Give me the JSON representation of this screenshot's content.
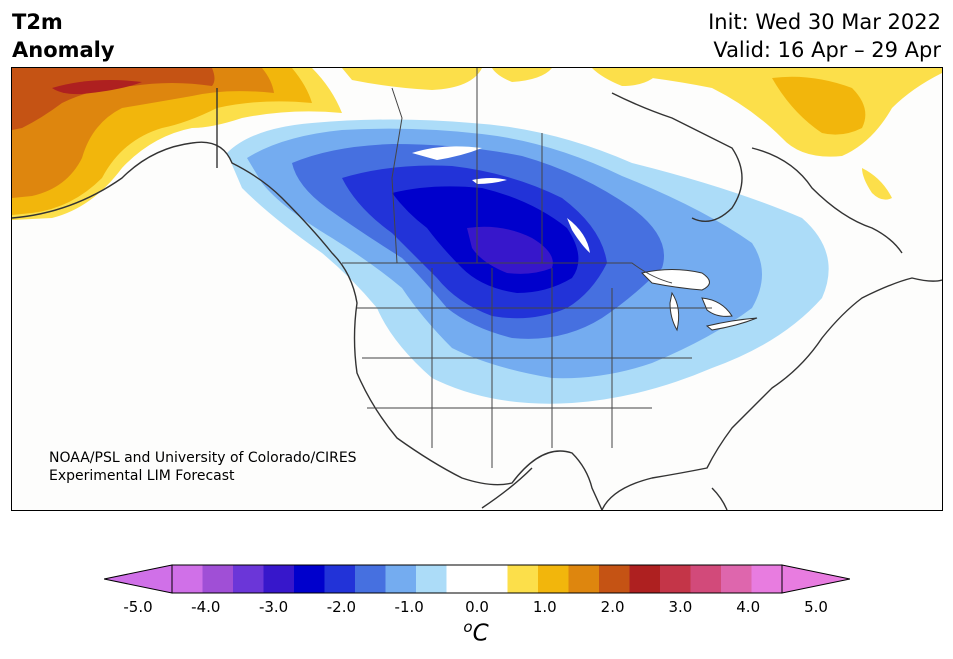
{
  "header": {
    "title_line1": "T2m",
    "title_line2": "Anomaly",
    "init": "Init: Wed 30 Mar 2022",
    "valid": "Valid: 16 Apr – 29 Apr"
  },
  "credit": {
    "line1": "NOAA/PSL and University of Colorado/CIRES",
    "line2": "Experimental LIM Forecast"
  },
  "colorbar": {
    "unit_base": "C",
    "unit_sup": "o",
    "ticks": [
      "-5.0",
      "-4.0",
      "-3.0",
      "-2.0",
      "-1.0",
      "0.0",
      "1.0",
      "2.0",
      "3.0",
      "4.0",
      "5.0"
    ],
    "colors": [
      "#d070e8",
      "#a04fd6",
      "#6b36d8",
      "#3717cb",
      "#0000cc",
      "#2233d8",
      "#4670e0",
      "#74acf0",
      "#acdcf8",
      "#ffffff",
      "#ffffff",
      "#fcdf4a",
      "#f2b60c",
      "#de860e",
      "#c55314",
      "#ae2020",
      "#c43548",
      "#d24a7a",
      "#de66ad",
      "#e87ce0"
    ],
    "under_color": "#d070e8",
    "over_color": "#e87ce0"
  },
  "map": {
    "domain": "North America",
    "anomaly_palette": {
      "cold_1": "#acdcf8",
      "cold_2": "#74acf0",
      "cold_3": "#4670e0",
      "cold_4": "#2233d8",
      "cold_5": "#0000cc",
      "cold_6": "#3717cb",
      "warm_1": "#fcdf4a",
      "warm_2": "#f2b60c",
      "warm_3": "#de860e",
      "warm_4": "#c55314",
      "warm_5": "#ae2020"
    }
  }
}
